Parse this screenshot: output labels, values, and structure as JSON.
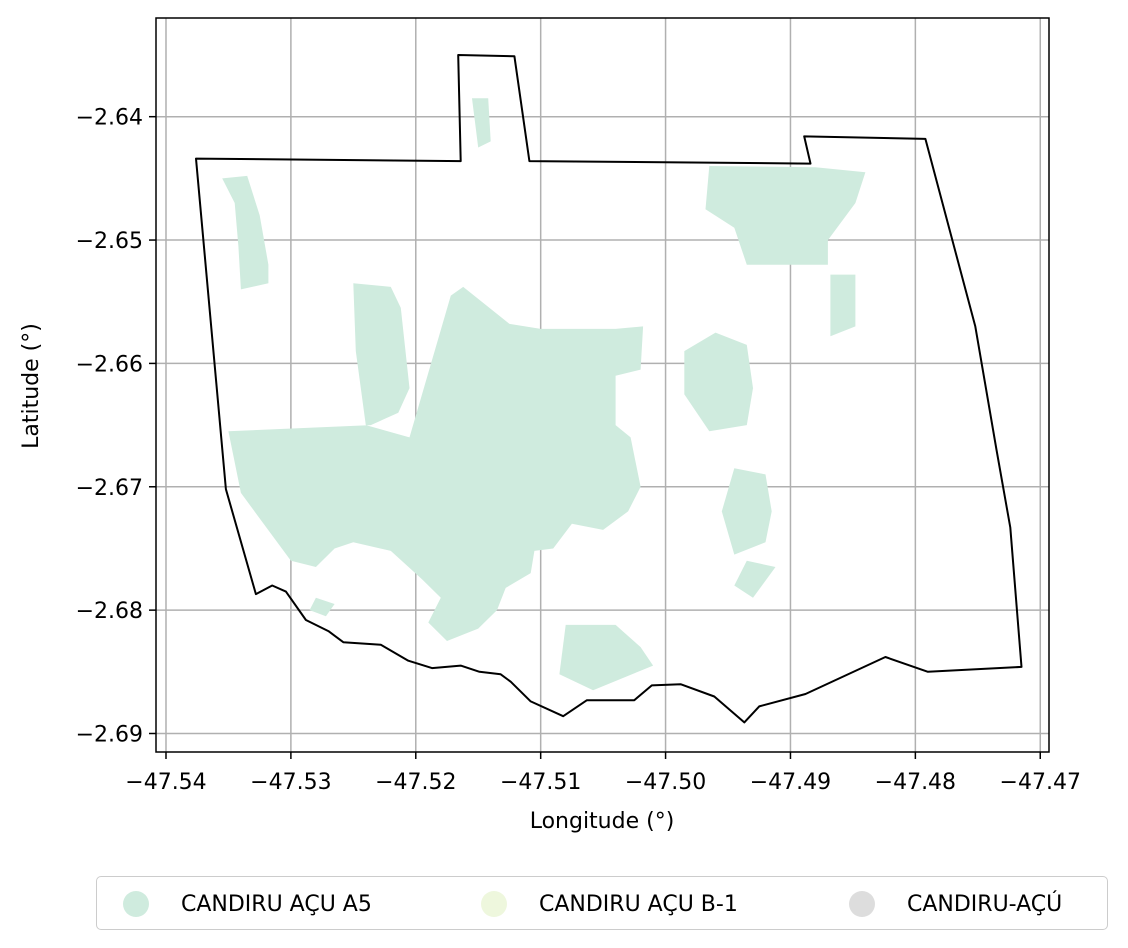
{
  "chart_data": {
    "type": "map",
    "xlabel": "Longitude (°)",
    "ylabel": "Latitude (°)",
    "xlim": [
      -47.5408,
      -47.4693
    ],
    "ylim": [
      -2.6915,
      -2.632
    ],
    "x_ticks": [
      -47.54,
      -47.53,
      -47.52,
      -47.51,
      -47.5,
      -47.49,
      -47.48,
      -47.47
    ],
    "y_ticks": [
      -2.64,
      -2.65,
      -2.66,
      -2.67,
      -2.68,
      -2.69
    ],
    "x_tick_labels": [
      "−47.54",
      "−47.53",
      "−47.52",
      "−47.51",
      "−47.50",
      "−47.49",
      "−47.48",
      "−47.47"
    ],
    "y_tick_labels": [
      "−2.64",
      "−2.65",
      "−2.66",
      "−2.67",
      "−2.68",
      "−2.69"
    ],
    "grid": true,
    "legend_position": "bottom-center",
    "boundary": [
      [
        -47.5376,
        -2.6434
      ],
      [
        -47.5164,
        -2.6436
      ],
      [
        -47.5166,
        -2.635
      ],
      [
        -47.5121,
        -2.6351
      ],
      [
        -47.5109,
        -2.6436
      ],
      [
        -47.4884,
        -2.6438
      ],
      [
        -47.4889,
        -2.6416
      ],
      [
        -47.4792,
        -2.6418
      ],
      [
        -47.4752,
        -2.657
      ],
      [
        -47.4735,
        -2.667
      ],
      [
        -47.4724,
        -2.6733
      ],
      [
        -47.4715,
        -2.6846
      ],
      [
        -47.479,
        -2.685
      ],
      [
        -47.4824,
        -2.6838
      ],
      [
        -47.4888,
        -2.6868
      ],
      [
        -47.4925,
        -2.6878
      ],
      [
        -47.4937,
        -2.6891
      ],
      [
        -47.4961,
        -2.687
      ],
      [
        -47.4988,
        -2.686
      ],
      [
        -47.5011,
        -2.6861
      ],
      [
        -47.5025,
        -2.6873
      ],
      [
        -47.5063,
        -2.6873
      ],
      [
        -47.5082,
        -2.6886
      ],
      [
        -47.5108,
        -2.6874
      ],
      [
        -47.5124,
        -2.6858
      ],
      [
        -47.5132,
        -2.6852
      ],
      [
        -47.5149,
        -2.685
      ],
      [
        -47.5164,
        -2.6845
      ],
      [
        -47.5187,
        -2.6847
      ],
      [
        -47.5206,
        -2.6841
      ],
      [
        -47.5228,
        -2.6828
      ],
      [
        -47.5258,
        -2.6826
      ],
      [
        -47.527,
        -2.6817
      ],
      [
        -47.5288,
        -2.6808
      ],
      [
        -47.5304,
        -2.6785
      ],
      [
        -47.5315,
        -2.678
      ],
      [
        -47.5328,
        -2.6787
      ],
      [
        -47.5352,
        -2.6702
      ],
      [
        -47.5376,
        -2.6434
      ]
    ],
    "series": [
      {
        "name": "CANDIRU AÇU A5",
        "color": "#cfebde",
        "polygons": [
          [
            [
              -47.535,
              -2.6655
            ],
            [
              -47.5236,
              -2.665
            ],
            [
              -47.5214,
              -2.664
            ],
            [
              -47.5205,
              -2.662
            ],
            [
              -47.5212,
              -2.6555
            ],
            [
              -47.522,
              -2.6538
            ],
            [
              -47.525,
              -2.6535
            ],
            [
              -47.5248,
              -2.659
            ],
            [
              -47.524,
              -2.665
            ],
            [
              -47.5205,
              -2.666
            ],
            [
              -47.5172,
              -2.6545
            ],
            [
              -47.5162,
              -2.6538
            ],
            [
              -47.5125,
              -2.6568
            ],
            [
              -47.51,
              -2.6572
            ],
            [
              -47.504,
              -2.6572
            ],
            [
              -47.5018,
              -2.657
            ],
            [
              -47.502,
              -2.6605
            ],
            [
              -47.504,
              -2.661
            ],
            [
              -47.504,
              -2.665
            ],
            [
              -47.5028,
              -2.666
            ],
            [
              -47.502,
              -2.67
            ],
            [
              -47.503,
              -2.672
            ],
            [
              -47.505,
              -2.6735
            ],
            [
              -47.5075,
              -2.673
            ],
            [
              -47.509,
              -2.675
            ],
            [
              -47.5105,
              -2.6752
            ],
            [
              -47.5108,
              -2.677
            ],
            [
              -47.5128,
              -2.6782
            ],
            [
              -47.5135,
              -2.68
            ],
            [
              -47.515,
              -2.6815
            ],
            [
              -47.5175,
              -2.6825
            ],
            [
              -47.519,
              -2.681
            ],
            [
              -47.518,
              -2.679
            ],
            [
              -47.5195,
              -2.6775
            ],
            [
              -47.522,
              -2.6752
            ],
            [
              -47.525,
              -2.6745
            ],
            [
              -47.5265,
              -2.675
            ],
            [
              -47.528,
              -2.6765
            ],
            [
              -47.53,
              -2.676
            ],
            [
              -47.534,
              -2.6705
            ],
            [
              -47.535,
              -2.6655
            ]
          ],
          [
            [
              -47.5355,
              -2.645
            ],
            [
              -47.5335,
              -2.6448
            ],
            [
              -47.5325,
              -2.648
            ],
            [
              -47.5318,
              -2.652
            ],
            [
              -47.5318,
              -2.6535
            ],
            [
              -47.534,
              -2.654
            ],
            [
              -47.5342,
              -2.6505
            ],
            [
              -47.5345,
              -2.647
            ],
            [
              -47.5355,
              -2.645
            ]
          ],
          [
            [
              -47.4965,
              -2.644
            ],
            [
              -47.488,
              -2.6441
            ],
            [
              -47.484,
              -2.6445
            ],
            [
              -47.4848,
              -2.647
            ],
            [
              -47.487,
              -2.65
            ],
            [
              -47.487,
              -2.652
            ],
            [
              -47.4935,
              -2.652
            ],
            [
              -47.4945,
              -2.649
            ],
            [
              -47.4968,
              -2.6475
            ],
            [
              -47.4965,
              -2.644
            ]
          ],
          [
            [
              -47.4868,
              -2.6528
            ],
            [
              -47.4848,
              -2.6528
            ],
            [
              -47.4848,
              -2.657
            ],
            [
              -47.4868,
              -2.6578
            ],
            [
              -47.4868,
              -2.6528
            ]
          ],
          [
            [
              -47.5155,
              -2.6385
            ],
            [
              -47.5142,
              -2.6385
            ],
            [
              -47.514,
              -2.642
            ],
            [
              -47.515,
              -2.6425
            ],
            [
              -47.5155,
              -2.6385
            ]
          ],
          [
            [
              -47.4985,
              -2.659
            ],
            [
              -47.496,
              -2.6575
            ],
            [
              -47.4935,
              -2.6585
            ],
            [
              -47.493,
              -2.662
            ],
            [
              -47.4935,
              -2.665
            ],
            [
              -47.4965,
              -2.6655
            ],
            [
              -47.4985,
              -2.6625
            ],
            [
              -47.4985,
              -2.659
            ]
          ],
          [
            [
              -47.4945,
              -2.6685
            ],
            [
              -47.492,
              -2.669
            ],
            [
              -47.4915,
              -2.672
            ],
            [
              -47.492,
              -2.6745
            ],
            [
              -47.4945,
              -2.6755
            ],
            [
              -47.4955,
              -2.672
            ],
            [
              -47.4945,
              -2.6685
            ]
          ],
          [
            [
              -47.4935,
              -2.676
            ],
            [
              -47.4912,
              -2.6765
            ],
            [
              -47.493,
              -2.679
            ],
            [
              -47.4945,
              -2.678
            ],
            [
              -47.4935,
              -2.676
            ]
          ],
          [
            [
              -47.508,
              -2.6812
            ],
            [
              -47.504,
              -2.6812
            ],
            [
              -47.502,
              -2.683
            ],
            [
              -47.501,
              -2.6845
            ],
            [
              -47.5058,
              -2.6865
            ],
            [
              -47.5085,
              -2.6852
            ],
            [
              -47.508,
              -2.6812
            ]
          ],
          [
            [
              -47.528,
              -2.679
            ],
            [
              -47.5265,
              -2.6795
            ],
            [
              -47.5272,
              -2.6805
            ],
            [
              -47.5285,
              -2.68
            ],
            [
              -47.528,
              -2.679
            ]
          ]
        ]
      },
      {
        "name": "CANDIRU AÇU B-1",
        "color": "#eef7dd",
        "polygons": []
      },
      {
        "name": "CANDIRU-AÇÚ",
        "color": "#dddddd",
        "polygons": []
      }
    ]
  }
}
